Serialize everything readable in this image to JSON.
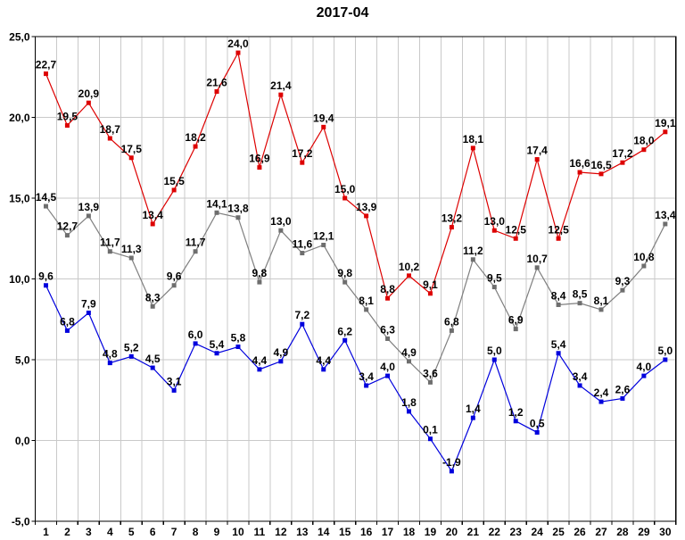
{
  "chart_data": {
    "type": "line",
    "title": "2017-04",
    "xlabel": "",
    "ylabel": "",
    "x": [
      1,
      2,
      3,
      4,
      5,
      6,
      7,
      8,
      9,
      10,
      11,
      12,
      13,
      14,
      15,
      16,
      17,
      18,
      19,
      20,
      21,
      22,
      23,
      24,
      25,
      26,
      27,
      28,
      29,
      30
    ],
    "series": [
      {
        "name": "red-series",
        "color": "#dd0000",
        "marker_color": "#dd0000",
        "values": [
          22.7,
          19.5,
          20.9,
          18.7,
          17.5,
          13.4,
          15.5,
          18.2,
          21.6,
          24.0,
          16.9,
          21.4,
          17.2,
          19.4,
          15.0,
          13.9,
          8.8,
          10.2,
          9.1,
          13.2,
          18.1,
          13.0,
          12.5,
          17.4,
          12.5,
          16.6,
          16.5,
          17.2,
          18.0,
          19.1
        ]
      },
      {
        "name": "gray-series",
        "color": "#7f7f7f",
        "marker_color": "#6e6e6e",
        "values": [
          14.5,
          12.7,
          13.9,
          11.7,
          11.3,
          8.3,
          9.6,
          11.7,
          14.1,
          13.8,
          9.8,
          13.0,
          11.6,
          12.1,
          9.8,
          8.1,
          6.3,
          4.9,
          3.6,
          6.8,
          11.2,
          9.5,
          6.9,
          10.7,
          8.4,
          8.5,
          8.1,
          9.3,
          10.8,
          13.4
        ]
      },
      {
        "name": "blue-series",
        "color": "#0000dd",
        "marker_color": "#0000dd",
        "values": [
          9.6,
          6.8,
          7.9,
          4.8,
          5.2,
          4.5,
          3.1,
          6.0,
          5.4,
          5.8,
          4.4,
          4.9,
          7.2,
          4.4,
          6.2,
          3.4,
          4.0,
          1.8,
          0.1,
          -1.9,
          1.4,
          5.0,
          1.2,
          0.5,
          5.4,
          3.4,
          2.4,
          2.6,
          4.0,
          5.0
        ]
      }
    ],
    "ylim": [
      -5,
      25
    ],
    "yticks": [
      25,
      20,
      15,
      10,
      5,
      0,
      -5
    ],
    "ytick_labels": [
      "25,0",
      "20,0",
      "15,0",
      "10,0",
      "5,0",
      "0,0",
      "-5,0"
    ],
    "point_labels": true,
    "decimal_separator": ",",
    "grid": true,
    "legend_position": "none",
    "colors": {
      "background": "#ffffff",
      "grid": "#c9c9c9",
      "frame": "#000000",
      "text": "#000000"
    }
  }
}
